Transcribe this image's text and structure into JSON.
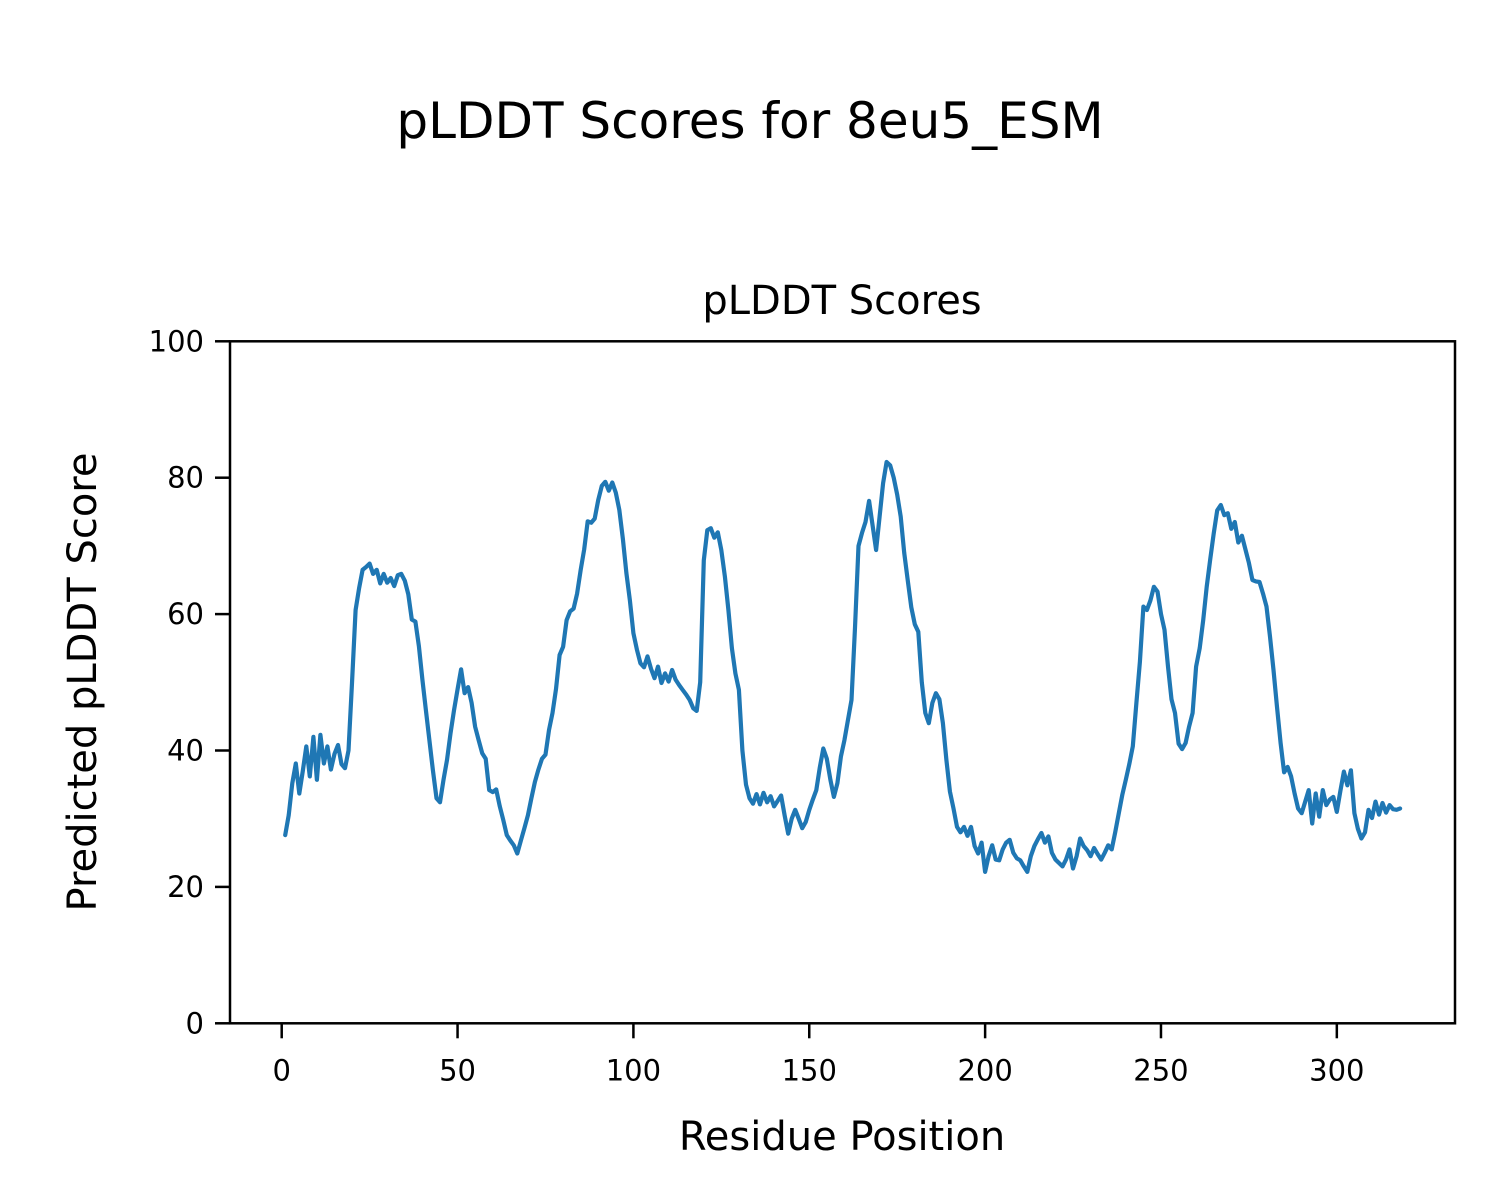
{
  "figure": {
    "suptitle": "pLDDT Scores for 8eu5_ESM"
  },
  "chart_data": {
    "type": "line",
    "title": "pLDDT Scores",
    "xlabel": "Residue Position",
    "ylabel": "Predicted pLDDT Score",
    "legend": null,
    "grid": false,
    "line_color": "#1f77b4",
    "xlim": [
      -14.7,
      333.6
    ],
    "ylim": [
      0,
      100
    ],
    "xticks": [
      0,
      50,
      100,
      150,
      200,
      250,
      300
    ],
    "yticks": [
      0,
      20,
      40,
      60,
      80,
      100
    ],
    "x_start": 1,
    "x_step": 1,
    "series_name": "pLDDT",
    "y": [
      27.6,
      30.5,
      35.2,
      38.1,
      33.7,
      37.0,
      40.6,
      36.2,
      42.0,
      35.7,
      42.3,
      38.1,
      40.6,
      37.2,
      39.5,
      40.8,
      38.0,
      37.4,
      40.0,
      49.9,
      60.6,
      63.8,
      66.5,
      66.9,
      67.4,
      65.9,
      66.5,
      64.5,
      65.9,
      64.6,
      65.3,
      64.1,
      65.7,
      65.9,
      64.9,
      62.9,
      59.2,
      58.9,
      55.3,
      50.4,
      45.9,
      41.5,
      37.1,
      33.0,
      32.4,
      35.7,
      38.6,
      42.5,
      45.9,
      49.0,
      51.9,
      48.4,
      49.3,
      47.0,
      43.5,
      41.5,
      39.6,
      38.8,
      34.2,
      33.9,
      34.3,
      31.8,
      29.8,
      27.6,
      26.8,
      26.1,
      24.9,
      26.8,
      28.6,
      30.5,
      33.0,
      35.4,
      37.2,
      38.8,
      39.4,
      43.0,
      45.5,
      49.0,
      54.0,
      55.2,
      59.1,
      60.4,
      60.8,
      63.0,
      66.5,
      69.5,
      73.6,
      73.4,
      74.0,
      76.7,
      78.8,
      79.4,
      78.1,
      79.3,
      77.8,
      75.3,
      71.0,
      66.0,
      62.0,
      57.2,
      54.8,
      52.8,
      52.2,
      53.8,
      52.0,
      50.6,
      52.3,
      49.9,
      51.3,
      50.1,
      51.8,
      50.4,
      49.6,
      48.9,
      48.2,
      47.4,
      46.2,
      45.8,
      50.0,
      67.9,
      72.3,
      72.6,
      71.2,
      72.0,
      69.4,
      65.5,
      60.6,
      55.0,
      51.3,
      48.9,
      40.0,
      35.0,
      33.0,
      32.2,
      33.6,
      32.1,
      33.8,
      32.4,
      33.3,
      31.8,
      32.6,
      33.4,
      30.5,
      27.8,
      30.0,
      31.3,
      30.0,
      28.6,
      29.5,
      31.3,
      32.8,
      34.2,
      37.5,
      40.3,
      38.8,
      35.7,
      33.2,
      35.2,
      39.1,
      41.5,
      44.5,
      47.4,
      58.0,
      70.0,
      71.9,
      73.5,
      76.6,
      73.0,
      69.4,
      74.3,
      79.2,
      82.3,
      81.8,
      80.0,
      77.5,
      74.3,
      69.0,
      65.0,
      61.0,
      58.5,
      57.4,
      50.0,
      45.5,
      44.0,
      47.0,
      48.4,
      47.5,
      44.0,
      38.6,
      34.0,
      31.5,
      28.8,
      28.0,
      28.8,
      27.5,
      28.8,
      26.0,
      24.9,
      26.5,
      22.2,
      24.5,
      26.1,
      24.0,
      23.9,
      25.5,
      26.5,
      26.9,
      25.0,
      24.2,
      23.9,
      23.0,
      22.2,
      24.5,
      26.0,
      27.0,
      27.9,
      26.5,
      27.4,
      25.0,
      24.0,
      23.5,
      23.0,
      24.0,
      25.5,
      22.7,
      24.5,
      27.1,
      26.0,
      25.4,
      24.5,
      25.7,
      24.8,
      24.0,
      25.0,
      26.1,
      25.5,
      28.0,
      30.8,
      33.5,
      35.7,
      38.0,
      40.6,
      47.0,
      53.0,
      61.1,
      60.6,
      62.0,
      64.0,
      63.3,
      60.0,
      57.7,
      52.3,
      47.5,
      45.5,
      41.0,
      40.2,
      41.1,
      43.5,
      45.5,
      52.3,
      55.0,
      59.1,
      64.0,
      68.0,
      71.8,
      75.2,
      76.0,
      74.5,
      74.8,
      72.5,
      73.5,
      70.5,
      71.5,
      69.5,
      67.5,
      65.0,
      64.8,
      64.7,
      63.0,
      61.1,
      56.7,
      51.8,
      46.4,
      41.1,
      36.8,
      37.6,
      36.2,
      33.7,
      31.5,
      30.8,
      32.5,
      34.2,
      29.3,
      33.7,
      30.3,
      34.2,
      32.0,
      32.8,
      33.2,
      31.0,
      34.0,
      36.9,
      34.9,
      37.1,
      30.8,
      28.5,
      27.1,
      28.0,
      31.3,
      30.1,
      32.5,
      30.6,
      32.3,
      30.9,
      32.0,
      31.4,
      31.3,
      31.5
    ]
  }
}
